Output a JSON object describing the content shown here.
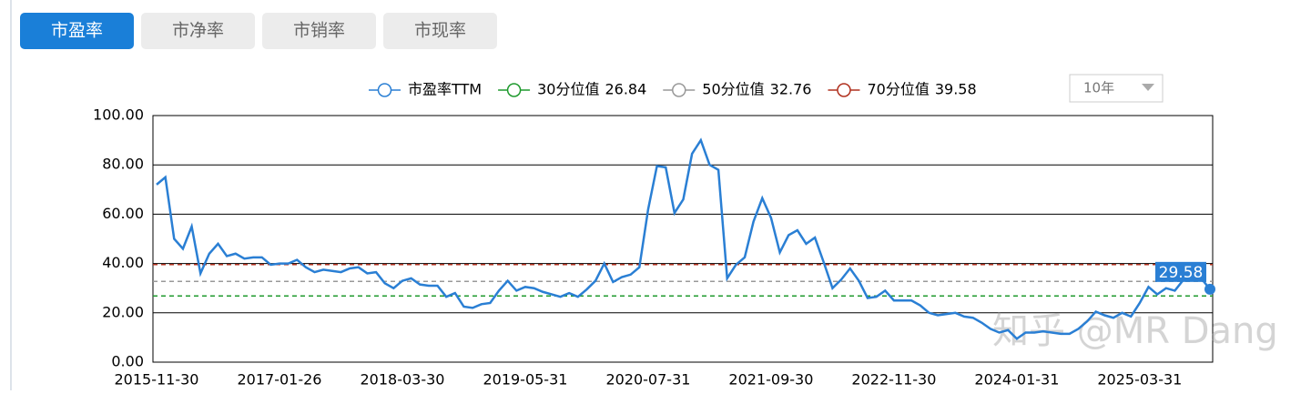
{
  "tabs": {
    "items": [
      "市盈率",
      "市净率",
      "市销率",
      "市现率"
    ],
    "active": 0
  },
  "dropdown": "10年",
  "watermark": "知乎 @MR Dang",
  "chart_data": {
    "type": "line",
    "categories": [
      "2015-11-30",
      null,
      null,
      null,
      null,
      null,
      null,
      null,
      null,
      null,
      null,
      null,
      null,
      null,
      "2017-01-26",
      null,
      null,
      null,
      null,
      null,
      null,
      null,
      null,
      null,
      null,
      null,
      null,
      null,
      "2018-03-30",
      null,
      null,
      null,
      null,
      null,
      null,
      null,
      null,
      null,
      null,
      null,
      null,
      null,
      "2019-05-31",
      null,
      null,
      null,
      null,
      null,
      null,
      null,
      null,
      null,
      null,
      null,
      null,
      null,
      "2020-07-31",
      null,
      null,
      null,
      null,
      null,
      null,
      null,
      null,
      null,
      null,
      null,
      null,
      null,
      "2021-09-30",
      null,
      null,
      null,
      null,
      null,
      null,
      null,
      null,
      null,
      null,
      null,
      null,
      null,
      "2022-11-30",
      null,
      null,
      null,
      null,
      null,
      null,
      null,
      null,
      null,
      null,
      null,
      null,
      null,
      "2024-01-31",
      null,
      null,
      null,
      null,
      null,
      null,
      null,
      null,
      null,
      null,
      null,
      null,
      null,
      "2025-03-31",
      null,
      null,
      null,
      null,
      null,
      null,
      null,
      null
    ],
    "series": [
      {
        "name": "市盈率TTM",
        "color": "#2a7fd4",
        "values": [
          72,
          75,
          50,
          46,
          55,
          36,
          44,
          48,
          43,
          44,
          42,
          42.5,
          42.5,
          39.5,
          40,
          40,
          41.5,
          38.5,
          36.5,
          37.5,
          37,
          36.5,
          38,
          38.5,
          36,
          36.5,
          32,
          30,
          33,
          34,
          31.5,
          31,
          31,
          26.5,
          28,
          22.5,
          22,
          23.5,
          24,
          29,
          33,
          29,
          30.5,
          30,
          28.5,
          27.5,
          26.5,
          28,
          26.5,
          29.5,
          33,
          40,
          32.5,
          34.5,
          35.5,
          38.5,
          62,
          79.5,
          79,
          60.5,
          66,
          84.5,
          90,
          80,
          78,
          34,
          39.5,
          42.5,
          57,
          66.5,
          58.5,
          44.5,
          51.5,
          53.5,
          48,
          50.5,
          40.5,
          30,
          33.5,
          38,
          33,
          26,
          26.5,
          29,
          25,
          25,
          25,
          23,
          20,
          19,
          19.5,
          20,
          18.5,
          18,
          16,
          13.5,
          12,
          13,
          9.5,
          12,
          12,
          12.5,
          12,
          11.5,
          11.5,
          13.5,
          16.5,
          20.5,
          19,
          18,
          20,
          18.5,
          24,
          30.5,
          27.5,
          30,
          29,
          33.5,
          33.5,
          34,
          29.58
        ]
      }
    ],
    "reference_lines": [
      {
        "name": "30分位值",
        "value": 26.84,
        "color": "#1f9a2e"
      },
      {
        "name": "50分位值",
        "value": 32.76,
        "color": "#999999"
      },
      {
        "name": "70分位值",
        "value": 39.58,
        "color": "#b0301e"
      }
    ],
    "ylim": [
      0,
      100
    ],
    "yticks": [
      {
        "value": 0,
        "label": "0.00"
      },
      {
        "value": 20,
        "label": "20.00"
      },
      {
        "value": 40,
        "label": "40.00"
      },
      {
        "value": 60,
        "label": "60.00"
      },
      {
        "value": 80,
        "label": "80.00"
      },
      {
        "value": 100,
        "label": "100.00"
      }
    ],
    "grid": true
  }
}
